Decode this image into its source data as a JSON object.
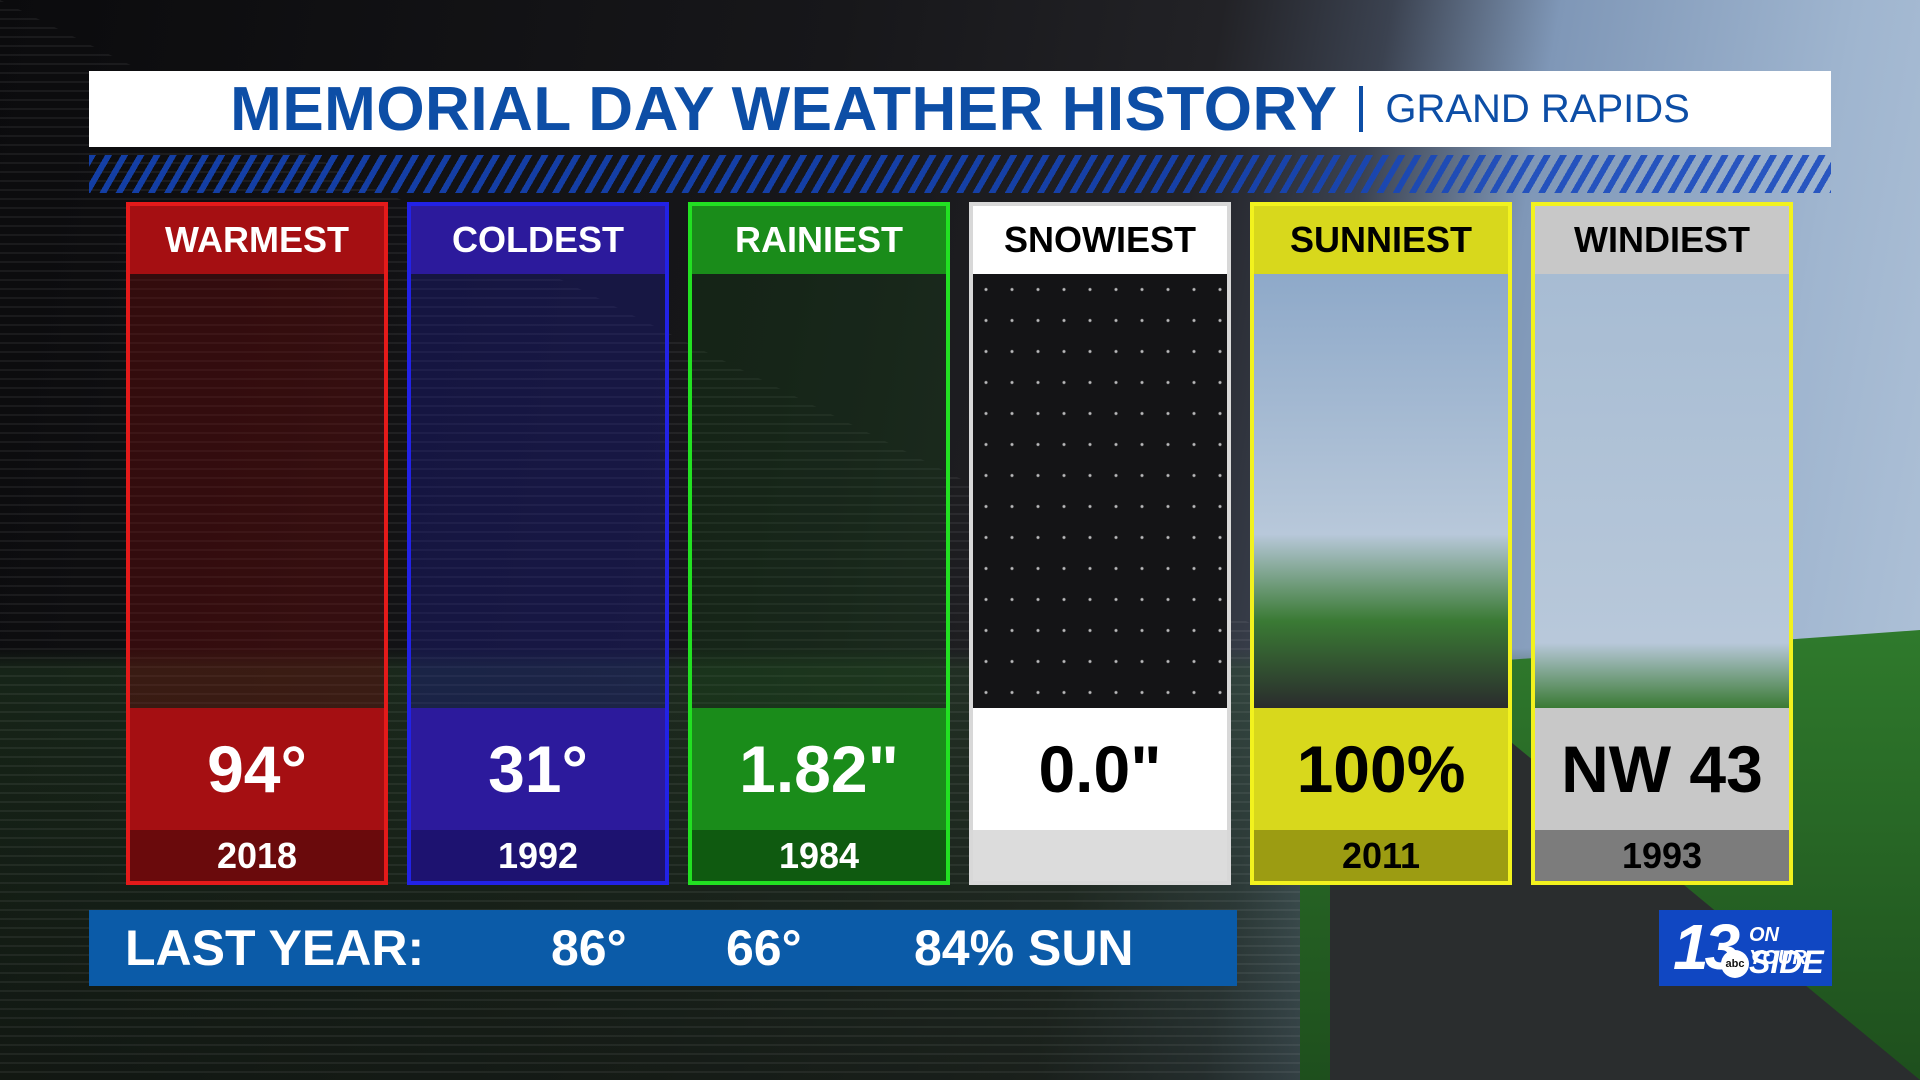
{
  "header": {
    "title": "MEMORIAL DAY WEATHER HISTORY",
    "subtitle": "GRAND RAPIDS"
  },
  "cards": [
    {
      "label": "WARMEST",
      "value": "94°",
      "year": "2018"
    },
    {
      "label": "COLDEST",
      "value": "31°",
      "year": "1992"
    },
    {
      "label": "RAINIEST",
      "value": "1.82\"",
      "year": "1984"
    },
    {
      "label": "SNOWIEST",
      "value": "0.0\""
    },
    {
      "label": "SUNNIEST",
      "value": "100%",
      "year": "2011"
    },
    {
      "label": "WINDIEST",
      "value": "NW 43",
      "year": "1993"
    }
  ],
  "last_year": {
    "label": "LAST YEAR:",
    "high": "86°",
    "low": "66°",
    "sun": "84% SUN"
  },
  "logo": {
    "number": "13",
    "network": "abc",
    "line1": "ON YOUR",
    "line2": "SIDE"
  }
}
